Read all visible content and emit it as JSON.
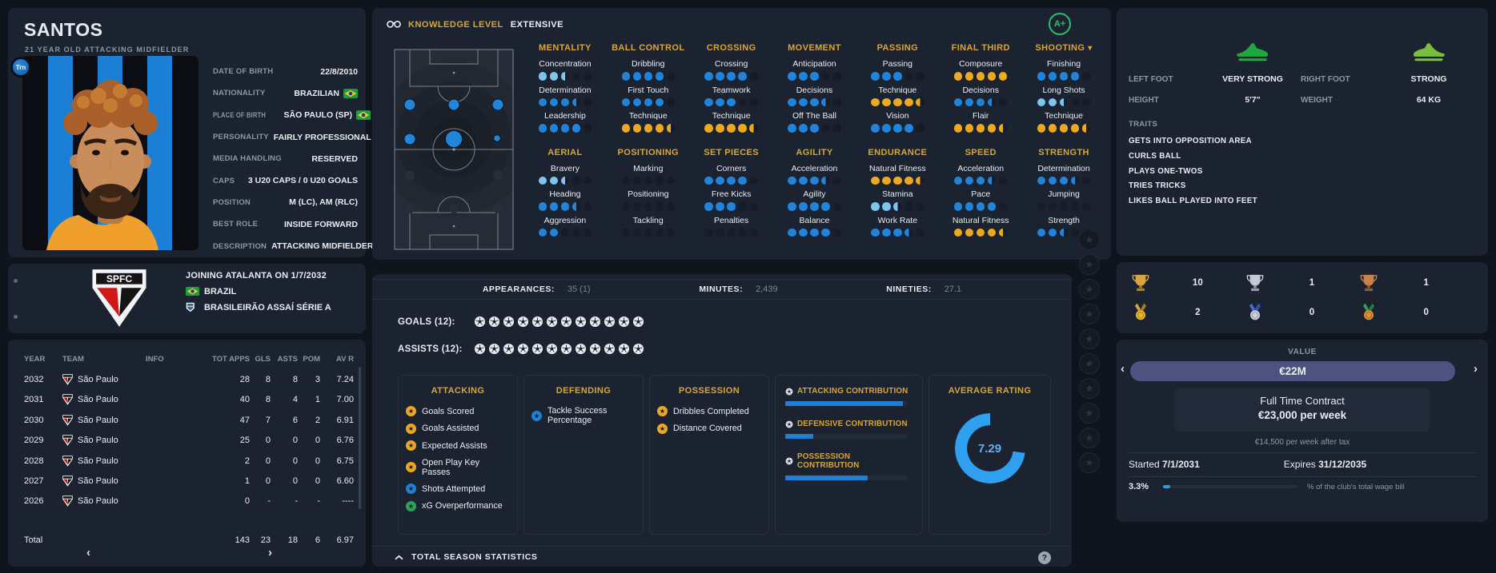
{
  "player": {
    "name": "SANTOS",
    "subtitle": "21 YEAR OLD ATTACKING MIDFIELDER",
    "photo_badge": "Trn",
    "details": [
      {
        "label": "DATE OF BIRTH",
        "value": "22/8/2010"
      },
      {
        "label": "NATIONALITY",
        "value": "BRAZILIAN",
        "flag": true
      },
      {
        "label": "PLACE OF BIRTH",
        "value": "SÃO PAULO (SP)",
        "flag": true,
        "condensed": true
      },
      {
        "label": "PERSONALITY",
        "value": "FAIRLY PROFESSIONAL"
      },
      {
        "label": "MEDIA HANDLING",
        "value": "RESERVED"
      },
      {
        "label": "CAPS",
        "value": "3 U20 CAPS / 0 U20 GOALS"
      },
      {
        "label": "POSITION",
        "value": "M (LC), AM (RLC)"
      },
      {
        "label": "BEST ROLE",
        "value": "INSIDE FORWARD"
      },
      {
        "label": "DESCRIPTION",
        "value": "ATTACKING MIDFIELDER"
      }
    ]
  },
  "club": {
    "crest_text": "SPFC",
    "joining": "JOINING ATALANTA ON 1/7/2032",
    "nation": "BRAZIL",
    "league": "BRASILEIRÃO ASSAÍ SÉRIE A"
  },
  "history": {
    "columns": [
      "YEAR",
      "TEAM",
      "INFO",
      "TOT APPS",
      "GLS",
      "ASTS",
      "POM",
      "AV R"
    ],
    "rows": [
      {
        "year": "2032",
        "team": "São Paulo",
        "info": "",
        "apps": "28",
        "gls": "8",
        "asts": "8",
        "pom": "3",
        "avr": "7.24"
      },
      {
        "year": "2031",
        "team": "São Paulo",
        "info": "",
        "apps": "40",
        "gls": "8",
        "asts": "4",
        "pom": "1",
        "avr": "7.00"
      },
      {
        "year": "2030",
        "team": "São Paulo",
        "info": "",
        "apps": "47",
        "gls": "7",
        "asts": "6",
        "pom": "2",
        "avr": "6.91"
      },
      {
        "year": "2029",
        "team": "São Paulo",
        "info": "",
        "apps": "25",
        "gls": "0",
        "asts": "0",
        "pom": "0",
        "avr": "6.76"
      },
      {
        "year": "2028",
        "team": "São Paulo",
        "info": "",
        "apps": "2",
        "gls": "0",
        "asts": "0",
        "pom": "0",
        "avr": "6.75"
      },
      {
        "year": "2027",
        "team": "São Paulo",
        "info": "",
        "apps": "1",
        "gls": "0",
        "asts": "0",
        "pom": "0",
        "avr": "6.60"
      },
      {
        "year": "2026",
        "team": "São Paulo",
        "info": "",
        "apps": "0",
        "gls": "-",
        "asts": "-",
        "pom": "-",
        "avr": "----"
      }
    ],
    "total": {
      "label": "Total",
      "info": "",
      "apps": "143",
      "gls": "23",
      "asts": "18",
      "pom": "6",
      "avr": "6.97"
    },
    "pager_prev": "‹",
    "pager_next": "›"
  },
  "knowledge": {
    "label": "KNOWLEDGE LEVEL",
    "value": "EXTENSIVE",
    "grade": "A+"
  },
  "attributes": {
    "row1": [
      {
        "category": "MENTALITY",
        "attrs": [
          {
            "name": "Concentration",
            "value": 2.5,
            "tone": "light"
          },
          {
            "name": "Determination",
            "value": 3.5,
            "tone": "blue"
          },
          {
            "name": "Leadership",
            "value": 4,
            "tone": "blue"
          }
        ]
      },
      {
        "category": "BALL CONTROL",
        "attrs": [
          {
            "name": "Dribbling",
            "value": 4,
            "tone": "blue"
          },
          {
            "name": "First Touch",
            "value": 4,
            "tone": "blue"
          },
          {
            "name": "Technique",
            "value": 4.5,
            "tone": "gold"
          }
        ]
      },
      {
        "category": "CROSSING",
        "attrs": [
          {
            "name": "Crossing",
            "value": 4,
            "tone": "blue"
          },
          {
            "name": "Teamwork",
            "value": 3,
            "tone": "blue"
          },
          {
            "name": "Technique",
            "value": 4.5,
            "tone": "gold"
          }
        ]
      },
      {
        "category": "MOVEMENT",
        "attrs": [
          {
            "name": "Anticipation",
            "value": 3,
            "tone": "blue"
          },
          {
            "name": "Decisions",
            "value": 3.5,
            "tone": "blue"
          },
          {
            "name": "Off The Ball",
            "value": 3,
            "tone": "blue"
          }
        ]
      },
      {
        "category": "PASSING",
        "attrs": [
          {
            "name": "Passing",
            "value": 3,
            "tone": "blue"
          },
          {
            "name": "Technique",
            "value": 4.5,
            "tone": "gold"
          },
          {
            "name": "Vision",
            "value": 4,
            "tone": "blue"
          }
        ]
      },
      {
        "category": "FINAL THIRD",
        "attrs": [
          {
            "name": "Composure",
            "value": 5,
            "tone": "gold"
          },
          {
            "name": "Decisions",
            "value": 3.5,
            "tone": "blue"
          },
          {
            "name": "Flair",
            "value": 4.5,
            "tone": "gold"
          }
        ]
      },
      {
        "category": "SHOOTING",
        "chevron": true,
        "attrs": [
          {
            "name": "Finishing",
            "value": 4,
            "tone": "blue"
          },
          {
            "name": "Long Shots",
            "value": 2.5,
            "tone": "light"
          },
          {
            "name": "Technique",
            "value": 4.5,
            "tone": "gold"
          }
        ]
      }
    ],
    "row2": [
      {
        "category": "AERIAL",
        "attrs": [
          {
            "name": "Bravery",
            "value": 2.5,
            "tone": "light"
          },
          {
            "name": "Heading",
            "value": 3.5,
            "tone": "blue"
          },
          {
            "name": "Aggression",
            "value": 2,
            "tone": "blue"
          }
        ]
      },
      {
        "category": "POSITIONING",
        "attrs": [
          {
            "name": "Marking",
            "value": 0,
            "tone": "blue"
          },
          {
            "name": "Positioning",
            "value": 0,
            "tone": "blue"
          },
          {
            "name": "Tackling",
            "value": 0,
            "tone": "blue"
          }
        ]
      },
      {
        "category": "SET PIECES",
        "attrs": [
          {
            "name": "Corners",
            "value": 4,
            "tone": "blue"
          },
          {
            "name": "Free Kicks",
            "value": 3,
            "tone": "blue"
          },
          {
            "name": "Penalties",
            "value": 0,
            "tone": "blue"
          }
        ]
      },
      {
        "category": "AGILITY",
        "attrs": [
          {
            "name": "Acceleration",
            "value": 3.5,
            "tone": "blue"
          },
          {
            "name": "Agility",
            "value": 4,
            "tone": "blue"
          },
          {
            "name": "Balance",
            "value": 4,
            "tone": "blue"
          }
        ]
      },
      {
        "category": "ENDURANCE",
        "attrs": [
          {
            "name": "Natural Fitness",
            "value": 4.5,
            "tone": "gold"
          },
          {
            "name": "Stamina",
            "value": 2.5,
            "tone": "light"
          },
          {
            "name": "Work Rate",
            "value": 3.5,
            "tone": "blue"
          }
        ]
      },
      {
        "category": "SPEED",
        "attrs": [
          {
            "name": "Acceleration",
            "value": 3.5,
            "tone": "blue"
          },
          {
            "name": "Pace",
            "value": 4,
            "tone": "blue"
          },
          {
            "name": "Natural Fitness",
            "value": 4.5,
            "tone": "gold"
          }
        ]
      },
      {
        "category": "STRENGTH",
        "attrs": [
          {
            "name": "Determination",
            "value": 3.5,
            "tone": "blue"
          },
          {
            "name": "Jumping",
            "value": 0,
            "tone": "blue"
          },
          {
            "name": "Strength",
            "value": 2.5,
            "tone": "blue"
          }
        ]
      }
    ]
  },
  "season": {
    "appearances_label": "APPEARANCES:",
    "appearances": "35 (1)",
    "minutes_label": "MINUTES:",
    "minutes": "2,439",
    "nineties_label": "NINETIES:",
    "nineties": "27.1",
    "goals_label": "GOALS (12):",
    "goals_count": 12,
    "assists_label": "ASSISTS (12):",
    "assists_count": 12,
    "panels": [
      {
        "title": "ATTACKING",
        "items": [
          {
            "label": "Goals Scored",
            "tone": "gold"
          },
          {
            "label": "Goals Assisted",
            "tone": "gold"
          },
          {
            "label": "Expected Assists",
            "tone": "gold"
          },
          {
            "label": "Open Play Key Passes",
            "tone": "gold"
          },
          {
            "label": "Shots Attempted",
            "tone": "blue"
          },
          {
            "label": "xG Overperformance",
            "tone": "green"
          }
        ]
      },
      {
        "title": "DEFENDING",
        "items": [
          {
            "label": "Tackle Success Percentage",
            "tone": "blue"
          }
        ]
      },
      {
        "title": "POSSESSION",
        "items": [
          {
            "label": "Dribbles Completed",
            "tone": "gold"
          },
          {
            "label": "Distance Covered",
            "tone": "gold"
          }
        ]
      }
    ],
    "contributions": [
      {
        "label": "ATTACKING CONTRIBUTION",
        "pct": 97
      },
      {
        "label": "DEFENSIVE CONTRIBUTION",
        "pct": 23
      },
      {
        "label": "POSSESSION CONTRIBUTION",
        "pct": 68
      }
    ],
    "average_rating_label": "AVERAGE RATING",
    "average_rating": "7.29",
    "average_rating_pct": 72.9,
    "footer": "TOTAL SEASON STATISTICS"
  },
  "icon_strip": {
    "count": 10,
    "glyph": "★"
  },
  "physical": {
    "left_foot_label": "LEFT FOOT",
    "left_foot": "VERY STRONG",
    "right_foot_label": "RIGHT FOOT",
    "right_foot": "STRONG",
    "height_label": "HEIGHT",
    "height": "5'7\"",
    "weight_label": "WEIGHT",
    "weight": "64 KG",
    "traits_label": "TRAITS",
    "traits": [
      "GETS INTO OPPOSITION AREA",
      "CURLS BALL",
      "PLAYS ONE-TWOS",
      "TRIES TRICKS",
      "LIKES BALL PLAYED INTO FEET"
    ]
  },
  "honours": [
    {
      "kind": "trophy",
      "metal": "gold",
      "count": "10"
    },
    {
      "kind": "trophy",
      "metal": "silver",
      "count": "1"
    },
    {
      "kind": "trophy",
      "metal": "bronze",
      "count": "1"
    },
    {
      "kind": "medal",
      "metal": "gold",
      "count": "2"
    },
    {
      "kind": "medal",
      "metal": "silver",
      "count": "0"
    },
    {
      "kind": "medal",
      "metal": "bronze",
      "count": "0"
    }
  ],
  "contract": {
    "value_label": "VALUE",
    "value": "€22M",
    "prev": "‹",
    "next": "›",
    "type": "Full Time Contract",
    "wage": "€23,000 per week",
    "wage_after_tax": "€14,500 per week after tax",
    "started_label": "Started",
    "started": "7/1/2031",
    "expires_label": "Expires",
    "expires": "31/12/2035",
    "wage_pct": "3.3%",
    "wage_pct_value": 3.3,
    "wage_pct_caption": "% of the club's total wage bill"
  },
  "colors": {
    "accent_gold": "#d9a62e",
    "dot_blue": "#2184da",
    "dot_light": "#7cc5ef",
    "dot_gold": "#edaa1f",
    "bar_blue": "#1f7fd4",
    "donut_blue": "#2f9ff0",
    "grade_green": "#29c06b",
    "boot_left_green": "#1fa83e",
    "boot_right_green": "#78bf3a",
    "value_pill": "#4d5280"
  },
  "icons": {
    "knowledge": "binoculars-icon",
    "shooting_menu": "chevron-down-icon",
    "footer_toggle": "chevron-up-icon",
    "help": "question-icon",
    "contribution_bullet": "football-icon",
    "goal_marker": "football-icon",
    "nation_flag": "brazil-flag-icon",
    "left_foot": "boot-icon",
    "right_foot": "boot-icon"
  }
}
